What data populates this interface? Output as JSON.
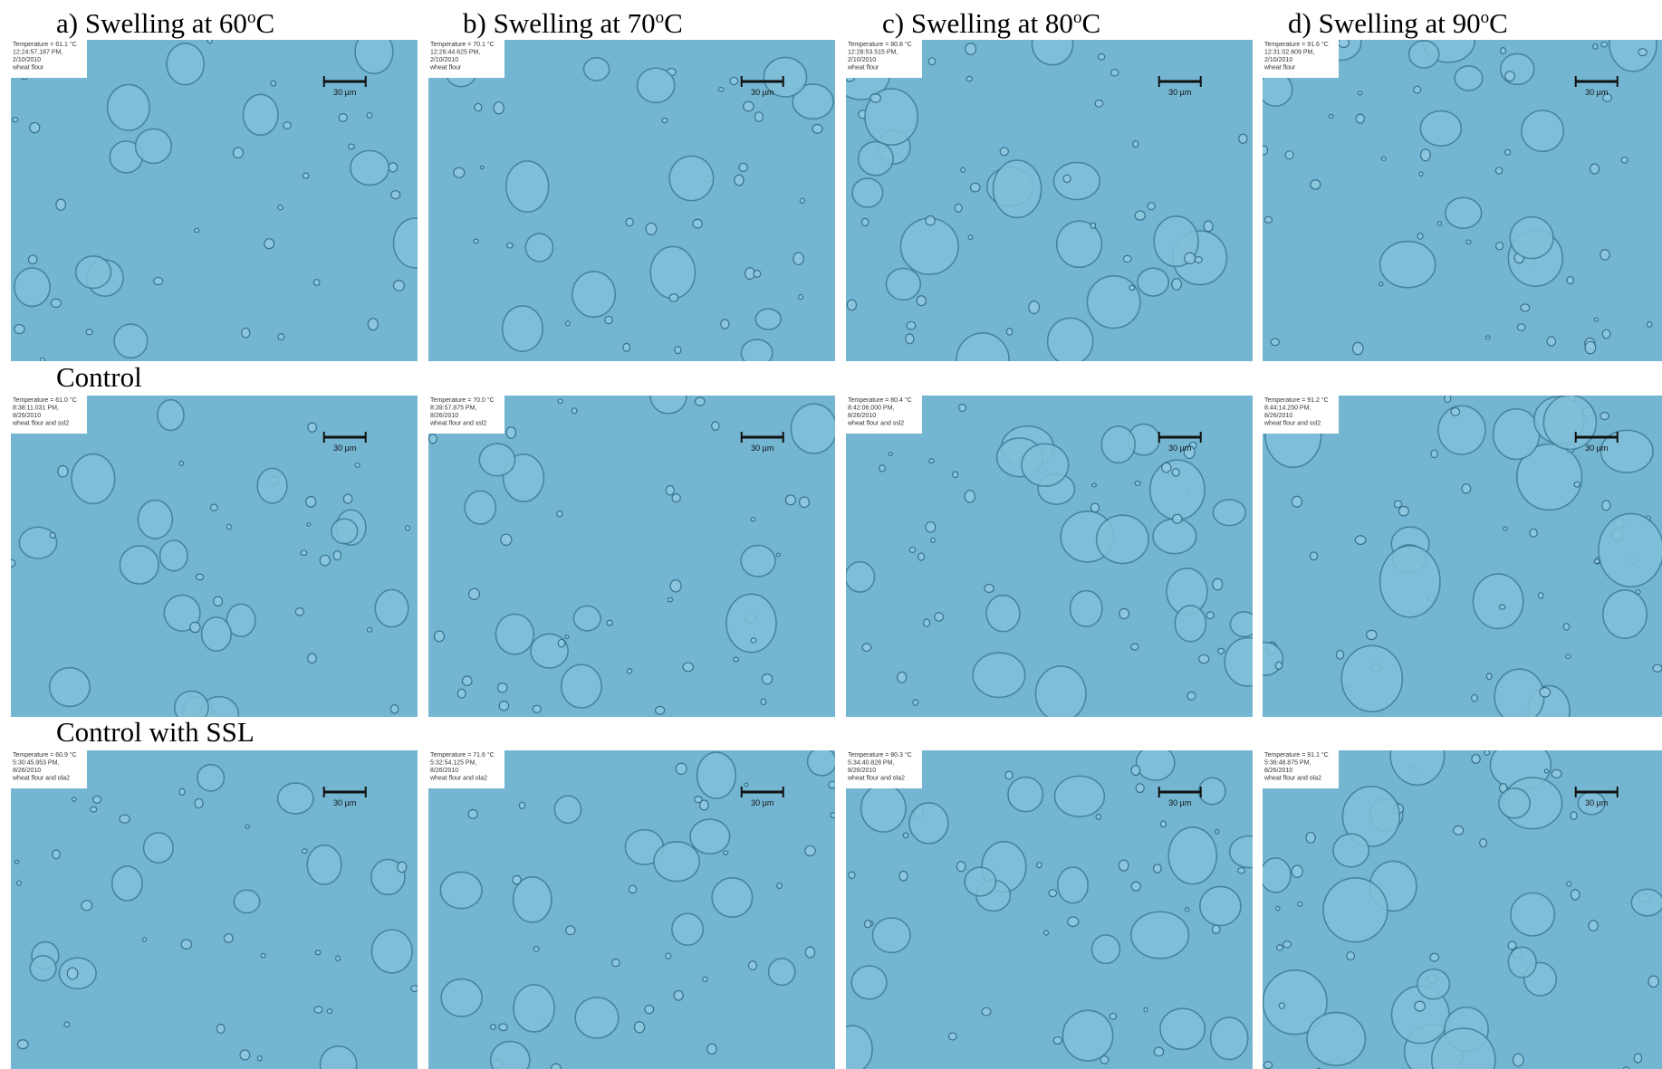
{
  "columns": [
    {
      "label": "a) Swelling at 60",
      "sup": "o",
      "unit": "C"
    },
    {
      "label": "b) Swelling at 70",
      "sup": "o",
      "unit": "C"
    },
    {
      "label": "c) Swelling at 80",
      "sup": "o",
      "unit": "C"
    },
    {
      "label": "d) Swelling at 90",
      "sup": "o",
      "unit": "C"
    }
  ],
  "rows": [
    {
      "label": null,
      "panels": [
        {
          "info": [
            "Temperature = 61.1 °C",
            "12:24:57.187 PM,",
            "2/10/2010",
            "wheat flour"
          ],
          "scale": "30 µm"
        },
        {
          "info": [
            "Temperature = 70.1 °C",
            "12:26:44.625 PM,",
            "2/10/2010",
            "wheat flour"
          ],
          "scale": "30 µm"
        },
        {
          "info": [
            "Temperature = 80.8 °C",
            "12:28:53.515 PM,",
            "2/10/2010",
            "wheat flour"
          ],
          "scale": "30 µm"
        },
        {
          "info": [
            "Temperature = 91.6 °C",
            "12:31:02.609 PM,",
            "2/10/2010",
            "wheat flour"
          ],
          "scale": "30 µm"
        }
      ]
    },
    {
      "label": "Control",
      "panels": [
        {
          "info": [
            "Temperature = 61.0 °C",
            "8:38:11.031 PM,",
            "8/26/2010",
            "wheat flour and ssl2"
          ],
          "scale": "30 µm"
        },
        {
          "info": [
            "Temperature = 70.0 °C",
            "8:39:57.875 PM,",
            "8/26/2010",
            "wheat flour and ssl2"
          ],
          "scale": "30 µm"
        },
        {
          "info": [
            "Temperature = 80.4 °C",
            "8:42:06.000 PM,",
            "8/26/2010",
            "wheat flour and ssl2"
          ],
          "scale": "30 µm"
        },
        {
          "info": [
            "Temperature = 91.2 °C",
            "8:44:14.250 PM,",
            "8/26/2010",
            "wheat flour and ssl2"
          ],
          "scale": "30 µm"
        }
      ]
    },
    {
      "label": "Control with SSL",
      "panels": [
        {
          "info": [
            "Temperature = 60.9 °C",
            "5:30:45.953 PM,",
            "8/26/2010",
            "wheat flour and ola2"
          ],
          "scale": "30 µm"
        },
        {
          "info": [
            "Temperature = 71.6 °C",
            "5:32:54.125 PM,",
            "8/26/2010",
            "wheat flour and ola2"
          ],
          "scale": "30 µm"
        },
        {
          "info": [
            "Temperature = 80.3 °C",
            "5:34:40.828 PM,",
            "8/26/2010",
            "wheat flour and ola2"
          ],
          "scale": "30 µm"
        },
        {
          "info": [
            "Temperature = 91.1 °C",
            "5:36:48.875 PM,",
            "8/26/2010",
            "wheat flour and ola2"
          ],
          "scale": "30 µm"
        }
      ]
    }
  ]
}
